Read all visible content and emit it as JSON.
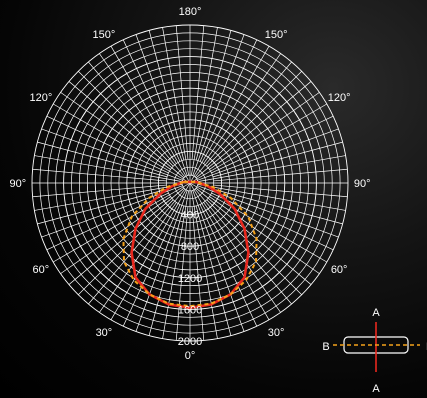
{
  "chart_data": {
    "type": "polar",
    "angle_unit": "degrees",
    "angle_zero": "bottom",
    "angle_labels": [
      {
        "deg": 0,
        "text": "0°"
      },
      {
        "deg": 30,
        "text": "30°"
      },
      {
        "deg": 60,
        "text": "60°"
      },
      {
        "deg": 90,
        "text": "90°"
      },
      {
        "deg": 120,
        "text": "120°"
      },
      {
        "deg": 150,
        "text": "150°"
      },
      {
        "deg": 180,
        "text": "180°"
      },
      {
        "deg": -30,
        "text": "30°"
      },
      {
        "deg": -60,
        "text": "60°"
      },
      {
        "deg": -90,
        "text": "90°"
      },
      {
        "deg": -120,
        "text": "120°"
      },
      {
        "deg": -150,
        "text": "150°"
      }
    ],
    "radial_range": [
      0,
      2000
    ],
    "radial_grid_step": 100,
    "radial_tick_labels": [
      "400",
      "800",
      "1200",
      "1600",
      "2000"
    ],
    "radial_tick_values": [
      400,
      800,
      1200,
      1600,
      2000
    ],
    "angular_grid_step_deg": 5,
    "grid": true,
    "grid_color": "#ffffff",
    "series": [
      {
        "key": "A",
        "color": "#e8281e",
        "dash": "solid",
        "points": [
          {
            "deg": 0,
            "r": 1580
          },
          {
            "deg": 10,
            "r": 1560
          },
          {
            "deg": 20,
            "r": 1500
          },
          {
            "deg": 30,
            "r": 1380
          },
          {
            "deg": 40,
            "r": 1150
          },
          {
            "deg": 50,
            "r": 900
          },
          {
            "deg": 60,
            "r": 650
          },
          {
            "deg": 70,
            "r": 400
          },
          {
            "deg": 80,
            "r": 230
          },
          {
            "deg": 90,
            "r": 120
          },
          {
            "deg": 100,
            "r": 80
          }
        ]
      },
      {
        "key": "B",
        "color": "#f5a21b",
        "dash": "dashed",
        "points": [
          {
            "deg": 0,
            "r": 1560
          },
          {
            "deg": 10,
            "r": 1550
          },
          {
            "deg": 20,
            "r": 1500
          },
          {
            "deg": 30,
            "r": 1420
          },
          {
            "deg": 40,
            "r": 1300
          },
          {
            "deg": 50,
            "r": 1100
          },
          {
            "deg": 60,
            "r": 850
          },
          {
            "deg": 70,
            "r": 550
          },
          {
            "deg": 80,
            "r": 300
          },
          {
            "deg": 90,
            "r": 120
          },
          {
            "deg": 100,
            "r": 80
          }
        ]
      }
    ],
    "symmetric": true,
    "legend": {
      "placement": "bottom-right",
      "labels": {
        "top": "A",
        "bottom": "A",
        "left": "B",
        "right": "B"
      },
      "box_color": "#ffffff",
      "a_color": "#e8281e",
      "b_color": "#f5a21b"
    }
  }
}
